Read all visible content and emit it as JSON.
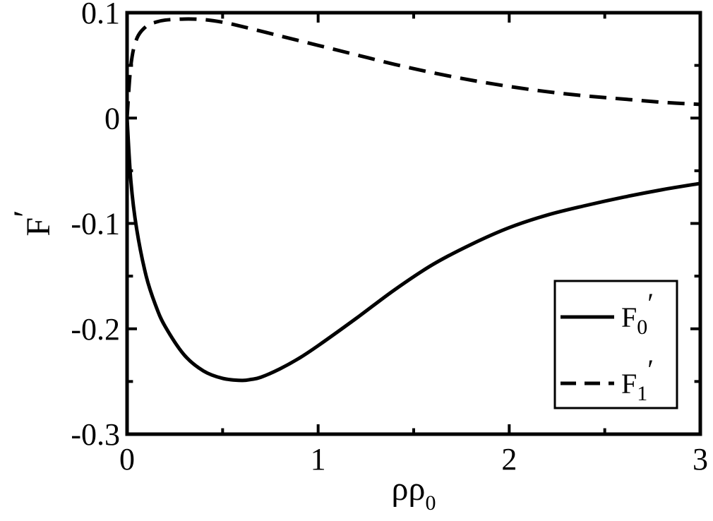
{
  "chart_data": {
    "type": "line",
    "title": "",
    "xlabel": {
      "main": "ρρ",
      "sub": "0"
    },
    "ylabel": {
      "main": "F",
      "prime": "′"
    },
    "xlim": [
      0,
      3
    ],
    "ylim": [
      -0.3,
      0.1
    ],
    "x_ticks": [
      0,
      1,
      2,
      3
    ],
    "x_tick_labels": [
      "0",
      "1",
      "2",
      "3"
    ],
    "y_ticks": [
      0.1,
      0,
      -0.1,
      -0.2,
      -0.3
    ],
    "y_tick_labels": [
      "0.1",
      "0",
      "-0.1",
      "-0.2",
      "-0.3"
    ],
    "grid": false,
    "legend_position": "bottom-right",
    "series": [
      {
        "name": "F0′",
        "legend": {
          "main": "F",
          "sub": "0",
          "prime": "′"
        },
        "style": "solid",
        "color": "#000000",
        "x": [
          0.0,
          0.02,
          0.05,
          0.1,
          0.15,
          0.2,
          0.3,
          0.4,
          0.5,
          0.6,
          0.65,
          0.7,
          0.8,
          0.9,
          1.0,
          1.2,
          1.4,
          1.6,
          1.8,
          2.0,
          2.2,
          2.4,
          2.6,
          2.8,
          3.0
        ],
        "y": [
          0.0,
          -0.06,
          -0.105,
          -0.15,
          -0.178,
          -0.198,
          -0.225,
          -0.24,
          -0.247,
          -0.249,
          -0.248,
          -0.246,
          -0.238,
          -0.228,
          -0.216,
          -0.19,
          -0.163,
          -0.139,
          -0.12,
          -0.104,
          -0.092,
          -0.083,
          -0.075,
          -0.068,
          -0.062
        ]
      },
      {
        "name": "F1′",
        "legend": {
          "main": "F",
          "sub": "1",
          "prime": "′"
        },
        "style": "dashed",
        "color": "#000000",
        "x": [
          0.0,
          0.02,
          0.05,
          0.1,
          0.15,
          0.2,
          0.3,
          0.4,
          0.5,
          0.6,
          0.8,
          1.0,
          1.2,
          1.4,
          1.6,
          1.8,
          2.0,
          2.2,
          2.4,
          2.6,
          2.8,
          3.0
        ],
        "y": [
          0.0,
          0.05,
          0.075,
          0.087,
          0.091,
          0.093,
          0.094,
          0.0935,
          0.091,
          0.087,
          0.078,
          0.069,
          0.06,
          0.051,
          0.043,
          0.036,
          0.03,
          0.025,
          0.021,
          0.018,
          0.015,
          0.013
        ]
      }
    ]
  }
}
